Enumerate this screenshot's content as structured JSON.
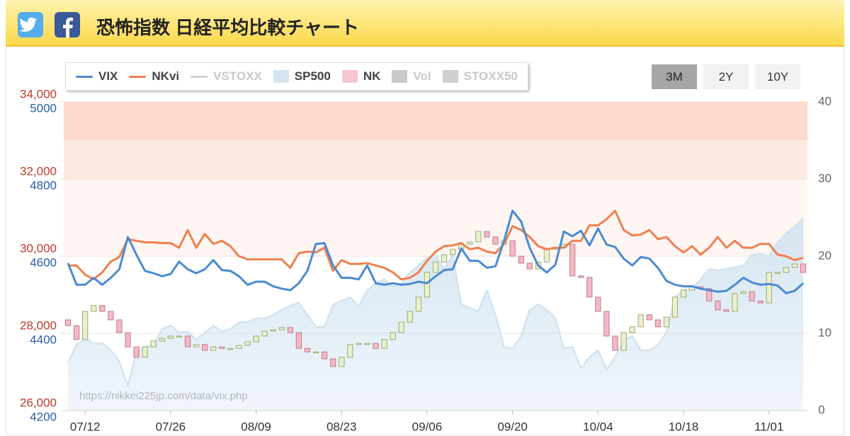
{
  "header": {
    "title": "恐怖指数 日経平均比較チャート"
  },
  "range_buttons": {
    "labels": [
      "3M",
      "2Y",
      "10Y"
    ],
    "selected": 0
  },
  "chart_data": {
    "type": "combo",
    "watermark": "https://nikkei225jp.com/data/vix.php",
    "categories": [
      null,
      null,
      "07/12",
      null,
      null,
      null,
      null,
      null,
      null,
      null,
      null,
      null,
      "07/26",
      null,
      null,
      null,
      null,
      null,
      null,
      null,
      null,
      null,
      "08/09",
      null,
      null,
      null,
      null,
      null,
      null,
      null,
      null,
      null,
      "08/23",
      null,
      null,
      null,
      null,
      null,
      null,
      null,
      null,
      null,
      "09/06",
      null,
      null,
      null,
      null,
      null,
      null,
      null,
      null,
      null,
      "09/20",
      null,
      null,
      null,
      null,
      null,
      null,
      null,
      null,
      null,
      "10/04",
      null,
      null,
      null,
      null,
      null,
      null,
      null,
      null,
      null,
      "10/18",
      null,
      null,
      null,
      null,
      null,
      null,
      null,
      null,
      null,
      "11/01",
      null,
      null,
      null,
      null
    ],
    "ylim": [
      26000,
      34000
    ],
    "yticks": [
      {
        "value": 26000,
        "label": "26,000"
      },
      {
        "value": 28000,
        "label": "28,000"
      },
      {
        "value": 30000,
        "label": "30,000"
      },
      {
        "value": 32000,
        "label": "32,000"
      },
      {
        "value": 34000,
        "label": "34,000"
      }
    ],
    "ytick_color": "#c0392b",
    "y3lim": [
      4200,
      5000
    ],
    "y3ticks": [
      4200,
      4400,
      4600,
      4800,
      5000
    ],
    "y3tick_color": "#2a5ea8",
    "y2lim": [
      0,
      40
    ],
    "y2ticks": [
      0,
      10,
      20,
      30,
      40
    ],
    "grid": true,
    "bands": [
      {
        "from": 35,
        "to": 40,
        "color": "#fdd9ce"
      },
      {
        "from": 30,
        "to": 35,
        "color": "#feeae4"
      },
      {
        "from": 20,
        "to": 30,
        "color": "#fff6f3"
      }
    ],
    "series": [
      {
        "name": "VIX",
        "type": "line",
        "color": "#4a8ad4",
        "axis": "y2",
        "values": [
          19.1,
          16.3,
          16.3,
          17.2,
          16.3,
          17.2,
          18.3,
          22.5,
          20.2,
          18.1,
          17.8,
          17.4,
          17.7,
          19.3,
          18.3,
          17.8,
          18.3,
          19.5,
          18.2,
          18.1,
          17.4,
          16.3,
          16.7,
          16.7,
          16.1,
          15.8,
          15.6,
          16.5,
          18.1,
          21.6,
          21.7,
          18.8,
          17.2,
          17.2,
          17.0,
          18.8,
          16.5,
          16.3,
          16.5,
          16.3,
          16.4,
          16.7,
          16.5,
          17.4,
          18.2,
          18.3,
          21.0,
          19.4,
          19.4,
          18.5,
          18.7,
          22.0,
          25.9,
          24.5,
          21.1,
          18.8,
          17.9,
          18.9,
          23.2,
          22.6,
          23.3,
          21.4,
          23.6,
          21.5,
          21.2,
          19.7,
          18.8,
          19.9,
          19.7,
          18.5,
          16.8,
          16.3,
          16.1,
          16.1,
          15.8,
          15.6,
          15.4,
          15.5,
          16.3,
          17.2,
          16.6,
          16.3,
          16.4,
          16.2,
          15.2,
          15.5,
          16.5
        ]
      },
      {
        "name": "NKvi",
        "type": "line",
        "color": "#f0804e",
        "axis": "y2",
        "values": [
          18.8,
          18.8,
          17.6,
          17.0,
          17.9,
          19.3,
          19.9,
          22.2,
          22.0,
          21.8,
          21.8,
          21.7,
          21.7,
          21.1,
          23.4,
          21.1,
          22.9,
          21.6,
          22.0,
          21.3,
          20.0,
          19.6,
          19.6,
          19.6,
          19.6,
          19.6,
          18.5,
          20.4,
          20.6,
          20.5,
          21.1,
          18.1,
          19.5,
          19.0,
          19.0,
          19.1,
          18.8,
          18.5,
          17.9,
          17.0,
          17.2,
          17.9,
          19.4,
          20.6,
          21.3,
          21.4,
          21.7,
          20.9,
          21.1,
          20.6,
          20.4,
          21.6,
          23.9,
          23.4,
          22.5,
          21.3,
          20.9,
          21.1,
          21.1,
          22.0,
          22.0,
          24.0,
          24.0,
          24.8,
          25.9,
          23.4,
          22.7,
          22.8,
          23.4,
          22.2,
          22.5,
          21.3,
          20.5,
          21.3,
          20.2,
          21.1,
          22.5,
          21.1,
          22.0,
          21.1,
          21.1,
          21.6,
          21.6,
          20.2,
          20.0,
          19.5,
          19.8
        ]
      },
      {
        "name": "VSTOXX",
        "type": "line",
        "color": "#cfd3d9",
        "visible": false
      },
      {
        "name": "SP500",
        "type": "area",
        "color": "#d3e4f1",
        "axis": "y3",
        "values": [
          4325,
          4371,
          4387,
          4374,
          4374,
          4356,
          4328,
          4264,
          4350,
          4365,
          4369,
          4411,
          4420,
          4402,
          4405,
          4383,
          4402,
          4420,
          4405,
          4411,
          4429,
          4429,
          4439,
          4439,
          4448,
          4461,
          4472,
          4479,
          4448,
          4417,
          4417,
          4475,
          4484,
          4494,
          4470,
          4512,
          4530,
          4540,
          4521,
          4530,
          4558,
          4576,
          4595,
          4604,
          4567,
          4604,
          4475,
          4466,
          4457,
          4512,
          4448,
          4365,
          4361,
          4393,
          4461,
          4475,
          4461,
          4439,
          4361,
          4365,
          4310,
          4338,
          4356,
          4306,
          4338,
          4383,
          4393,
          4356,
          4356,
          4369,
          4402,
          4494,
          4512,
          4516,
          4540,
          4567,
          4563,
          4567,
          4571,
          4576,
          4604,
          4607,
          4600,
          4637,
          4659,
          4677,
          4699
        ]
      },
      {
        "name": "NK",
        "type": "candlestick",
        "color": "#f7c6d0",
        "axis": "y",
        "up_color": "#e9f0d2",
        "up_stroke": "#9aab6c",
        "down_color": "#f4b8c6",
        "down_stroke": "#c27a8a",
        "open": [
          28350,
          28200,
          27840,
          28570,
          28720,
          28570,
          28350,
          28020,
          27650,
          27380,
          27650,
          27800,
          27870,
          27930,
          27930,
          27650,
          27710,
          27560,
          27650,
          27610,
          27610,
          27690,
          27780,
          27930,
          28060,
          28090,
          28150,
          28020,
          27610,
          27520,
          27520,
          27340,
          27140,
          27380,
          27710,
          27740,
          27740,
          27610,
          27840,
          28020,
          28290,
          28570,
          28940,
          29580,
          29850,
          30040,
          30180,
          30310,
          30370,
          30640,
          30500,
          30310,
          30400,
          30000,
          29820,
          29670,
          29850,
          30180,
          30220,
          30310,
          29490,
          29450,
          28940,
          28570,
          27930,
          27560,
          28020,
          28170,
          28480,
          28350,
          28170,
          28420,
          28940,
          29120,
          29210,
          29160,
          28840,
          28610,
          28570,
          29030,
          29080,
          28840,
          28790,
          29580,
          29580,
          29710,
          29800
        ],
        "close": [
          28200,
          27840,
          28570,
          28720,
          28570,
          28350,
          28020,
          27650,
          27380,
          27650,
          27800,
          27870,
          27930,
          27930,
          27650,
          27710,
          27560,
          27650,
          27610,
          27610,
          27690,
          27780,
          27930,
          28060,
          28090,
          28150,
          28020,
          27610,
          27520,
          27520,
          27340,
          27140,
          27380,
          27710,
          27740,
          27740,
          27610,
          27840,
          28020,
          28290,
          28570,
          28940,
          29580,
          29850,
          30040,
          30180,
          30310,
          30370,
          30640,
          30500,
          30310,
          30400,
          30000,
          29820,
          29670,
          29850,
          30180,
          30220,
          30310,
          29490,
          29450,
          28940,
          28570,
          27930,
          27560,
          28020,
          28170,
          28480,
          28350,
          28170,
          28420,
          28940,
          29120,
          29210,
          29160,
          28840,
          28610,
          28570,
          29030,
          29080,
          28840,
          28790,
          29580,
          29580,
          29710,
          29800,
          29580
        ]
      },
      {
        "name": "Vol",
        "type": "bar",
        "color": "#c9c9c9",
        "visible": false
      },
      {
        "name": "STOXX50",
        "type": "area",
        "color": "#cfcfcf",
        "visible": false
      }
    ]
  }
}
